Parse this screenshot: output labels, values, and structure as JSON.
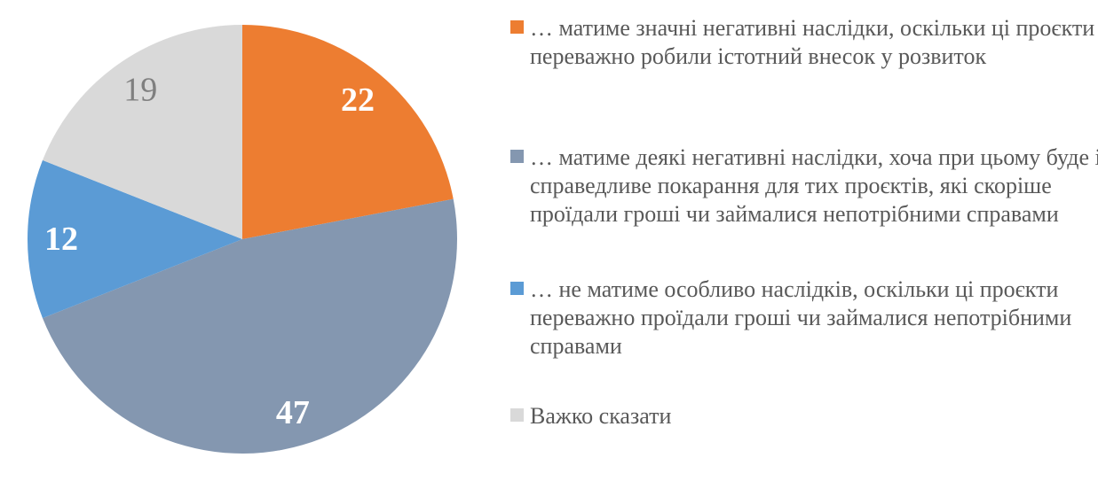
{
  "chart_data": {
    "type": "pie",
    "title": "",
    "background": "#FFFFFF",
    "legend_position": "right",
    "legend_text_color": "#595959",
    "start_angle_deg": 0,
    "direction": "clockwise",
    "categories": [
      "… матиме значні негативні наслідки, оскільки ці проєкти переважно робили істотний внесок у розвиток",
      "… матиме деякі негативні наслідки, хоча при цьому буде і справедливе покарання для тих проєктів, які скоріше проїдали гроші чи займалися непотрібними справами",
      "… не матиме особливо наслідків, оскільки ці проєкти переважно проїдали гроші чи займалися непотрібними справами",
      "Важко сказати"
    ],
    "values": [
      22,
      47,
      12,
      19
    ],
    "slices": [
      {
        "label": "… матиме значні негативні наслідки, оскільки ці проєкти переважно робили істотний внесок у розвиток",
        "value": 22,
        "color": "#ED7D31",
        "value_label_color": "#FFFFFF",
        "value_label_bold": true
      },
      {
        "label": "… матиме деякі негативні наслідки, хоча при цьому буде і справедливе покарання для тих проєктів, які скоріше проїдали гроші чи займалися непотрібними справами",
        "value": 47,
        "color": "#8497B0",
        "value_label_color": "#FFFFFF",
        "value_label_bold": true
      },
      {
        "label": "… не матиме особливо наслідків, оскільки ці проєкти переважно проїдали гроші чи займалися непотрібними справами",
        "value": 12,
        "color": "#5B9BD5",
        "value_label_color": "#FFFFFF",
        "value_label_bold": true
      },
      {
        "label": "Важко сказати",
        "value": 19,
        "color": "#D9D9D9",
        "value_label_color": "#7F7F7F",
        "value_label_bold": false
      }
    ]
  }
}
